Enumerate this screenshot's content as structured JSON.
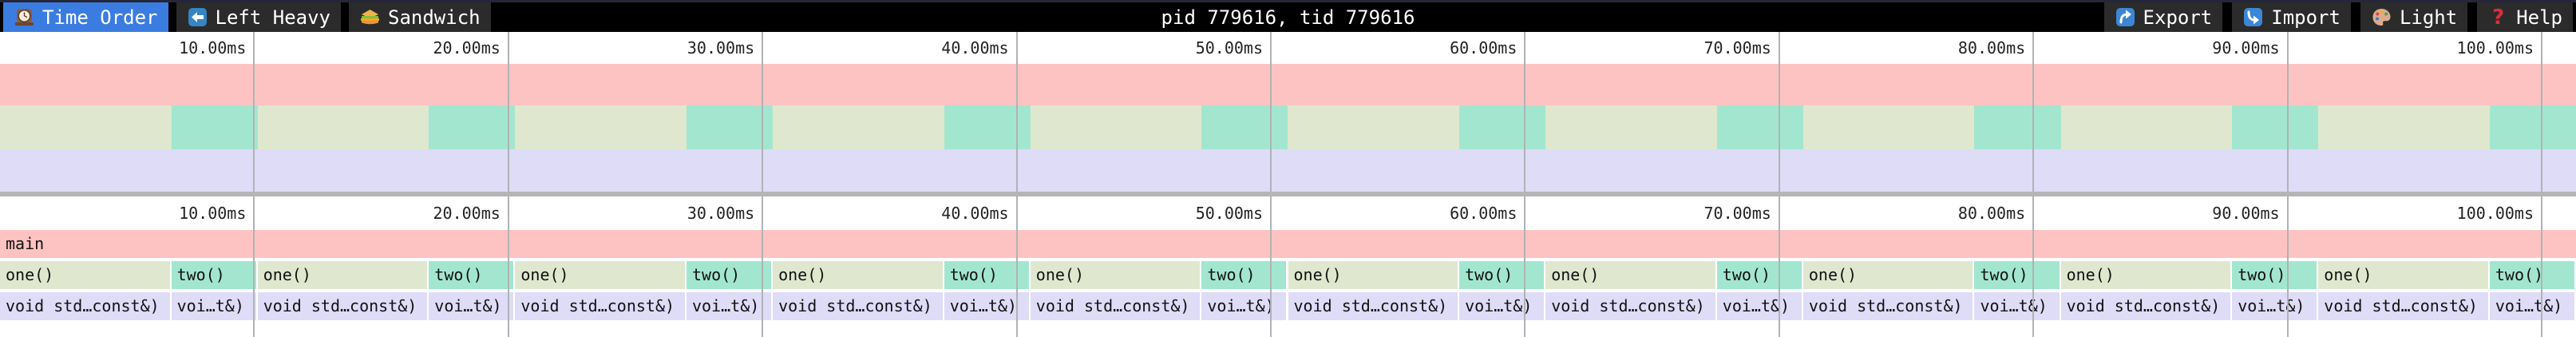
{
  "toolbar": {
    "tabs": [
      {
        "label": "Time Order",
        "icon": "clock-icon",
        "active": true
      },
      {
        "label": "Left Heavy",
        "icon": "left-arrow-icon",
        "active": false
      },
      {
        "label": "Sandwich",
        "icon": "sandwich-icon",
        "active": false
      }
    ],
    "title": "pid 779616, tid 779616",
    "actions": [
      {
        "label": "Export",
        "icon": "export-icon"
      },
      {
        "label": "Import",
        "icon": "import-icon"
      },
      {
        "label": "Light",
        "icon": "palette-icon"
      },
      {
        "label": "Help",
        "icon": "help-icon"
      }
    ]
  },
  "rulers": {
    "tick_labels": [
      "10.00ms",
      "20.00ms",
      "30.00ms",
      "40.00ms",
      "50.00ms",
      "60.00ms",
      "70.00ms",
      "80.00ms",
      "90.00ms",
      "100.00ms"
    ]
  },
  "profile": {
    "root_frame": {
      "label": "main",
      "color": "#fcc3c2"
    },
    "iterations": 10,
    "iteration_duration_ms": 10.1,
    "frames_per_iteration": [
      {
        "label": "one()",
        "detail_label": "void std…const&)",
        "color": "#dfe8cf",
        "detail_color": "#dedcf7",
        "fraction": 0.665
      },
      {
        "label": "two()",
        "detail_label": "voi…t&)",
        "color": "#a3e6cf",
        "detail_color": "#dedcf7",
        "fraction": 0.335
      }
    ]
  },
  "colors": {
    "accent_blue": "#3b7ce0",
    "toolbar_bg": "#000000",
    "tab_bg": "#2b2b2b",
    "main_pink": "#fcc3c2",
    "one_green": "#dfe8cf",
    "two_teal": "#a3e6cf",
    "detail_lavender": "#dedcf7",
    "gridline": "#b0b3b5",
    "separator": "#b4b4b4"
  }
}
